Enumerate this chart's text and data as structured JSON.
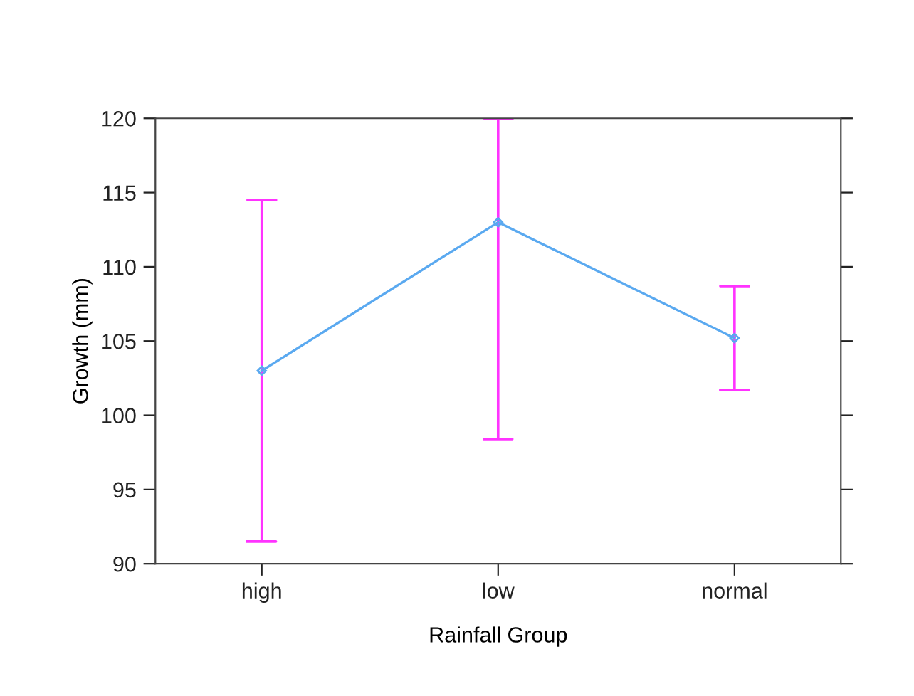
{
  "chart_data": {
    "type": "line",
    "xlabel": "Rainfall Group",
    "ylabel": "Growth (mm)",
    "categories": [
      "high",
      "low",
      "normal"
    ],
    "series": [
      {
        "color": "#5aa9f0",
        "values": [
          103,
          113,
          105.2
        ],
        "errors": [
          [
            91.5,
            114.5
          ],
          [
            98.4,
            120
          ],
          [
            101.7,
            108.7
          ]
        ]
      }
    ],
    "ylim": [
      90,
      120
    ],
    "yticks": [
      90,
      95,
      100,
      105,
      110,
      115,
      120
    ],
    "marker": "diamond",
    "line_style": "solid",
    "grid": false,
    "legend": false
  }
}
